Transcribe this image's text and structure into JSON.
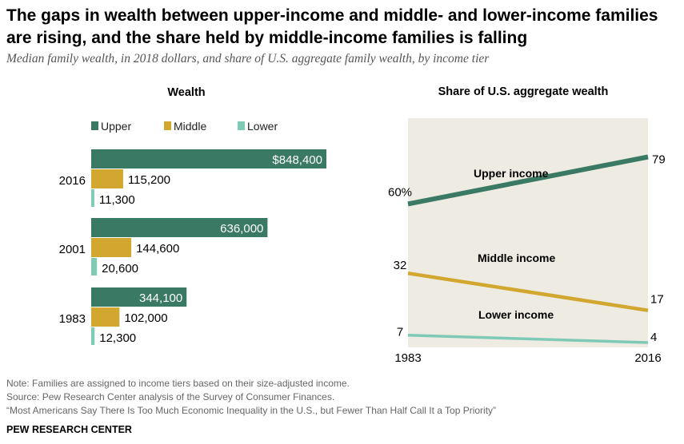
{
  "title": "The gaps in wealth between upper-income and middle- and lower-income families are rising, and the share held by middle-income families is falling",
  "subtitle": "Median family wealth, in 2018 dollars, and share of U.S. aggregate family wealth, by income tier",
  "colors": {
    "upper": "#3a7a64",
    "middle": "#d2a72f",
    "lower": "#7fcab7",
    "panel_bg": "#eeebe2"
  },
  "legend": [
    {
      "key": "upper",
      "label": "Upper"
    },
    {
      "key": "middle",
      "label": "Middle"
    },
    {
      "key": "lower",
      "label": "Lower"
    }
  ],
  "chart_data": [
    {
      "type": "bar",
      "orientation": "horizontal",
      "title": "Wealth",
      "categories": [
        "2016",
        "2001",
        "1983"
      ],
      "series": [
        {
          "name": "Upper",
          "values": [
            848400,
            636000,
            344100
          ],
          "labels": [
            "$848,400",
            "636,000",
            "344,100"
          ]
        },
        {
          "name": "Middle",
          "values": [
            115200,
            144600,
            102000
          ],
          "labels": [
            "115,200",
            "144,600",
            "102,000"
          ]
        },
        {
          "name": "Lower",
          "values": [
            11300,
            20600,
            12300
          ],
          "labels": [
            "11,300",
            "20,600",
            "12,300"
          ]
        }
      ],
      "legend_position": "top",
      "grid": false
    },
    {
      "type": "line",
      "title": "Share of U.S. aggregate wealth",
      "x": [
        "1983",
        "2016"
      ],
      "series": [
        {
          "name": "Upper income",
          "values": [
            60,
            79
          ],
          "labels": [
            "60%",
            "79"
          ]
        },
        {
          "name": "Middle income",
          "values": [
            32,
            17
          ],
          "labels": [
            "32",
            "17"
          ]
        },
        {
          "name": "Lower income",
          "values": [
            7,
            4
          ],
          "labels": [
            "7",
            "4"
          ]
        }
      ],
      "ylim": [
        0,
        85
      ],
      "grid": false
    }
  ],
  "notes": {
    "note": "Note: Families are assigned to income tiers based on their size-adjusted income.",
    "source": "Source: Pew Research Center analysis of the Survey of Consumer Finances.",
    "report": "“Most Americans Say There Is Too Much Economic Inequality in the U.S., but Fewer Than Half Call It a Top Priority”"
  },
  "credit": "PEW RESEARCH CENTER"
}
